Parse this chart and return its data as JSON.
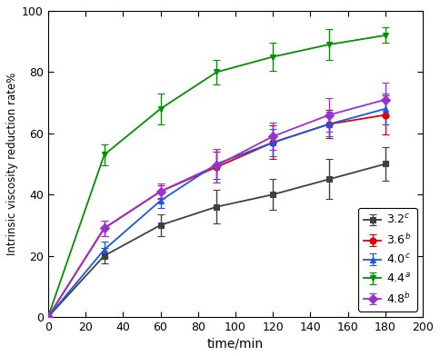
{
  "x": [
    0,
    30,
    60,
    90,
    120,
    150,
    180
  ],
  "series": {
    "3.2^c": {
      "y": [
        0,
        20,
        30,
        36,
        40,
        45,
        50
      ],
      "yerr": [
        0,
        2.5,
        3.5,
        5.5,
        5.0,
        6.5,
        5.5
      ],
      "color": "#404040",
      "marker": "s",
      "label": "3.2",
      "superscript": "c"
    },
    "3.6^b": {
      "y": [
        0,
        29,
        41,
        49,
        57,
        63,
        66
      ],
      "yerr": [
        0,
        2.5,
        2.0,
        5.0,
        5.5,
        4.5,
        6.5
      ],
      "color": "#e00000",
      "marker": "o",
      "label": "3.6",
      "superscript": "b"
    },
    "4.0^c": {
      "y": [
        0,
        22,
        38,
        50,
        57,
        63,
        68
      ],
      "yerr": [
        0,
        2.5,
        2.5,
        5.0,
        4.5,
        4.0,
        5.0
      ],
      "color": "#1a56e8",
      "marker": "^",
      "label": "4.0",
      "superscript": "c"
    },
    "4.4^a": {
      "y": [
        0,
        53,
        68,
        80,
        85,
        89,
        92
      ],
      "yerr": [
        0,
        3.5,
        5.0,
        4.0,
        4.5,
        5.0,
        2.5
      ],
      "color": "#009000",
      "marker": "v",
      "label": "4.4",
      "superscript": "a"
    },
    "4.8^b": {
      "y": [
        0,
        29,
        41,
        49.5,
        59,
        66,
        71
      ],
      "yerr": [
        0,
        2.5,
        2.5,
        5.5,
        4.5,
        5.5,
        5.5
      ],
      "color": "#9b30d0",
      "marker": "D",
      "label": "4.8",
      "superscript": "b"
    }
  },
  "xlabel": "time/min",
  "ylabel": "Intrinsic viscosity reduction rate%",
  "xlim": [
    0,
    200
  ],
  "ylim": [
    0,
    100
  ],
  "xticks": [
    0,
    20,
    40,
    60,
    80,
    100,
    120,
    140,
    160,
    180,
    200
  ],
  "yticks": [
    0,
    20,
    40,
    60,
    80,
    100
  ],
  "legend_order": [
    "3.2^c",
    "3.6^b",
    "4.0^c",
    "4.4^a",
    "4.8^b"
  ]
}
